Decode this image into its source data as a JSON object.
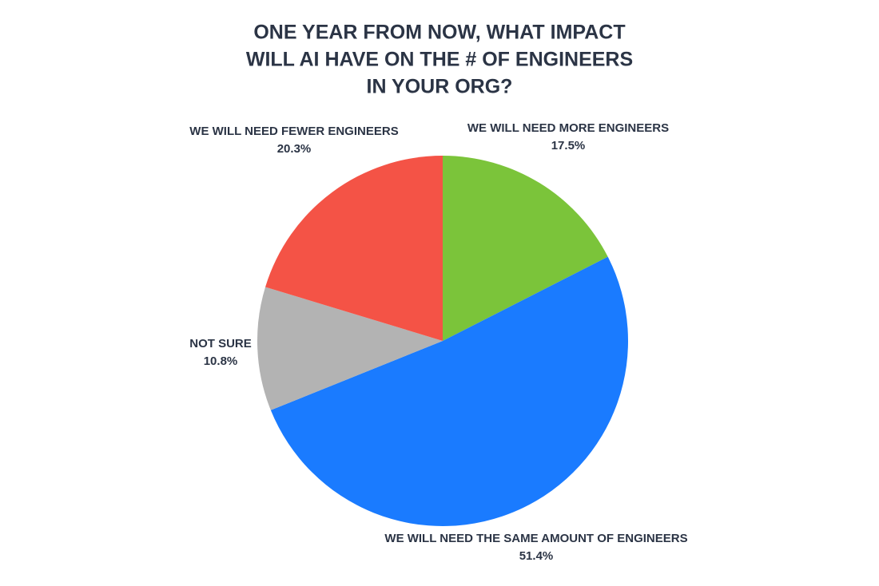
{
  "chart_data": {
    "type": "pie",
    "title": [
      "ONE YEAR FROM NOW, WHAT IMPACT",
      "WILL AI HAVE ON THE # OF ENGINEERS",
      "IN YOUR ORG?"
    ],
    "categories": [
      "WE WILL NEED MORE ENGINEERS",
      "WE WILL NEED THE SAME AMOUNT OF ENGINEERS",
      "NOT SURE",
      "WE WILL NEED FEWER ENGINEERS"
    ],
    "values": [
      17.5,
      51.4,
      10.8,
      20.3
    ],
    "value_labels": [
      "17.5%",
      "51.4%",
      "10.8%",
      "20.3%"
    ],
    "colors": [
      "#7bc43a",
      "#1a7bff",
      "#b3b3b3",
      "#f45346"
    ]
  }
}
